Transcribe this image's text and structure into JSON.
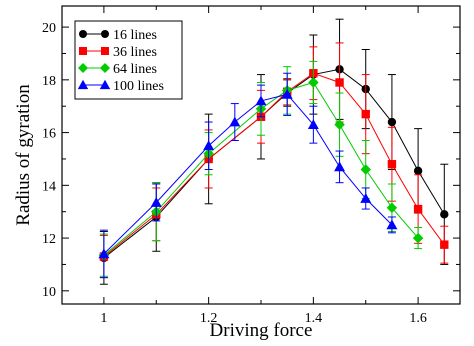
{
  "chart_data": {
    "type": "line",
    "xlabel": "Driving force",
    "ylabel": "Radius of gyration",
    "xlim": [
      0.92,
      1.68
    ],
    "ylim": [
      9.5,
      20.8
    ],
    "xticks": [
      1,
      1.2,
      1.4,
      1.6
    ],
    "xtick_labels": [
      "1",
      "1.2",
      "1.4",
      "1.6"
    ],
    "yticks": [
      10,
      12,
      14,
      16,
      18,
      20
    ],
    "ytick_labels": [
      "10",
      "12",
      "14",
      "16",
      "18",
      "20"
    ],
    "grid": false,
    "legend_position": "top-left",
    "series": [
      {
        "name": "16 lines",
        "color": "#000000",
        "marker": "circle",
        "x": [
          1.0,
          1.1,
          1.2,
          1.3,
          1.35,
          1.4,
          1.45,
          1.5,
          1.55,
          1.6,
          1.65
        ],
        "y": [
          11.25,
          12.8,
          15.0,
          16.6,
          17.5,
          18.2,
          18.4,
          17.65,
          16.4,
          14.55,
          12.9
        ],
        "err": [
          1.0,
          1.3,
          1.7,
          1.6,
          0.5,
          1.5,
          1.9,
          1.5,
          1.8,
          1.6,
          1.9
        ]
      },
      {
        "name": "36 lines",
        "color": "#ff0000",
        "marker": "square",
        "x": [
          1.0,
          1.1,
          1.2,
          1.3,
          1.35,
          1.4,
          1.45,
          1.5,
          1.55,
          1.6,
          1.65
        ],
        "y": [
          11.3,
          12.9,
          15.0,
          16.6,
          17.55,
          18.25,
          17.9,
          16.7,
          14.8,
          13.1,
          11.75
        ],
        "err": [
          0.8,
          1.0,
          1.1,
          1.0,
          0.5,
          1.0,
          1.5,
          1.5,
          1.4,
          1.3,
          0.7
        ]
      },
      {
        "name": "64 lines",
        "color": "#00cc00",
        "marker": "diamond",
        "x": [
          1.0,
          1.1,
          1.2,
          1.3,
          1.35,
          1.4,
          1.45,
          1.5,
          1.55,
          1.6
        ],
        "y": [
          11.35,
          13.0,
          15.2,
          16.9,
          17.6,
          17.9,
          16.3,
          14.6,
          13.15,
          12.0
        ],
        "err": [
          0.8,
          1.1,
          0.8,
          1.0,
          0.9,
          0.8,
          1.2,
          1.1,
          0.9,
          0.4
        ]
      },
      {
        "name": "100 lines",
        "color": "#0000ff",
        "marker": "triangle",
        "x": [
          1.0,
          1.1,
          1.2,
          1.25,
          1.3,
          1.35,
          1.4,
          1.45,
          1.5,
          1.55
        ],
        "y": [
          11.4,
          13.35,
          15.5,
          16.4,
          17.2,
          17.45,
          16.3,
          14.7,
          13.5,
          12.5
        ],
        "err": [
          0.9,
          0.7,
          0.9,
          0.7,
          0.6,
          0.8,
          0.7,
          0.6,
          0.4,
          0.3
        ]
      }
    ]
  }
}
